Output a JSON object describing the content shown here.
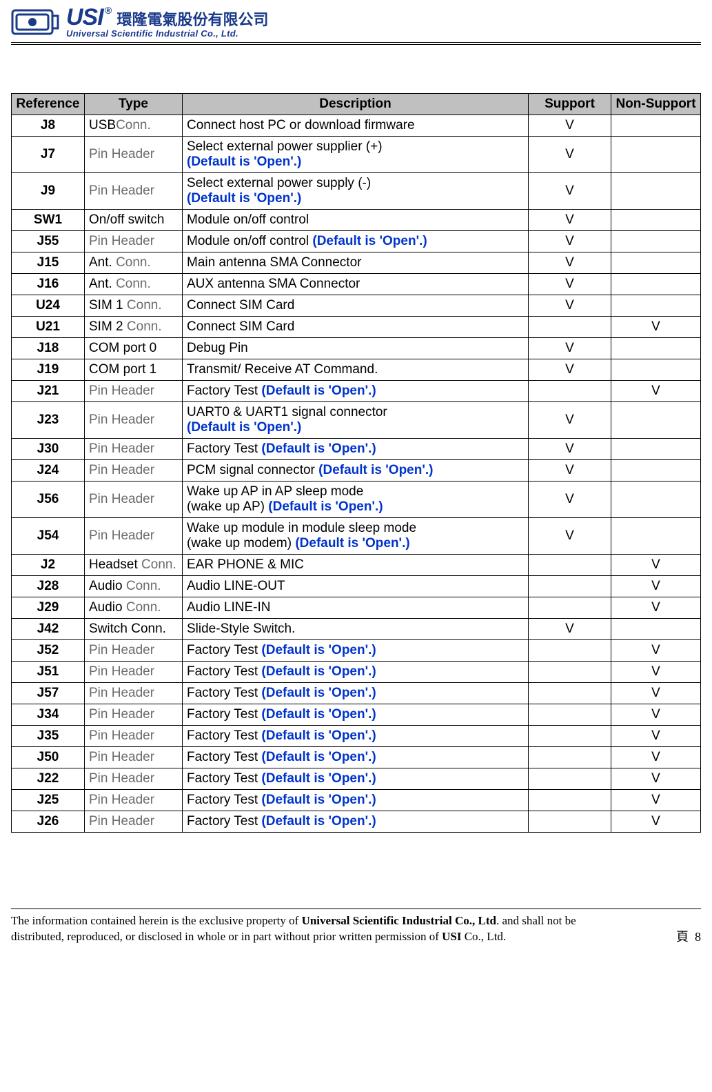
{
  "header": {
    "brand_abbr": "USI",
    "registered": "®",
    "brand_cn": "環隆電氣股份有限公司",
    "brand_sub": "Universal Scientific Industrial Co., Ltd."
  },
  "table": {
    "columns": [
      "Reference",
      "Type",
      "Description",
      "Support",
      "Non-Support"
    ],
    "default_note": "Default is 'Open'.",
    "rows": [
      {
        "ref": "J8",
        "type": "USB",
        "type_grey": "Conn.",
        "desc": "Connect host PC or download firmware",
        "has_default": false,
        "support": "V",
        "nonsupport": ""
      },
      {
        "ref": "J7",
        "type_grey_full": "Pin Header",
        "desc": "Select external power supplier (+)",
        "has_default": true,
        "default_inline": false,
        "support": "V",
        "nonsupport": ""
      },
      {
        "ref": "J9",
        "type_grey_full": "Pin Header",
        "desc": "Select external power supply (-)",
        "has_default": true,
        "default_inline": false,
        "support": "V",
        "nonsupport": ""
      },
      {
        "ref": "SW1",
        "type": "On/off switch",
        "desc": "Module on/off control",
        "has_default": false,
        "support": "V",
        "nonsupport": ""
      },
      {
        "ref": "J55",
        "type_grey_full": "Pin Header",
        "desc": "Module on/off control ",
        "has_default": true,
        "default_inline": true,
        "support": "V",
        "nonsupport": ""
      },
      {
        "ref": "J15",
        "type": "Ant. ",
        "type_grey": "Conn.",
        "desc": "Main antenna SMA Connector",
        "has_default": false,
        "support": "V",
        "nonsupport": ""
      },
      {
        "ref": "J16",
        "type": "Ant. ",
        "type_grey": "Conn.",
        "desc": "AUX antenna SMA Connector",
        "has_default": false,
        "support": "V",
        "nonsupport": ""
      },
      {
        "ref": "U24",
        "type": "SIM 1 ",
        "type_grey": "Conn.",
        "desc": "Connect SIM Card",
        "has_default": false,
        "support": "V",
        "nonsupport": ""
      },
      {
        "ref": "U21",
        "type": "SIM 2 ",
        "type_grey": "Conn.",
        "desc": "Connect SIM Card",
        "has_default": false,
        "support": "",
        "nonsupport": "V"
      },
      {
        "ref": "J18",
        "type": "COM port 0",
        "desc": "Debug Pin",
        "has_default": false,
        "support": "V",
        "nonsupport": ""
      },
      {
        "ref": "J19",
        "type": "COM port 1",
        "desc": "Transmit/ Receive AT Command.",
        "has_default": false,
        "support": "V",
        "nonsupport": ""
      },
      {
        "ref": "J21",
        "type_grey_full": "Pin Header",
        "desc": "Factory Test ",
        "has_default": true,
        "default_inline": true,
        "support": "",
        "nonsupport": "V"
      },
      {
        "ref": "J23",
        "type_grey_full": "Pin Header",
        "desc": "UART0 & UART1 signal connector",
        "has_default": true,
        "default_inline": false,
        "support": "V",
        "nonsupport": ""
      },
      {
        "ref": "J30",
        "type_grey_full": "Pin Header",
        "desc": "Factory Test ",
        "has_default": true,
        "default_inline": true,
        "support": "V",
        "nonsupport": ""
      },
      {
        "ref": "J24",
        "type_grey_full": "Pin Header",
        "desc": "PCM signal connector ",
        "has_default": true,
        "default_inline": true,
        "support": "V",
        "nonsupport": ""
      },
      {
        "ref": "J56",
        "type_grey_full": "Pin Header",
        "desc": "Wake up AP in AP sleep mode",
        "desc2": "(wake up AP) ",
        "has_default": true,
        "default_inline": true,
        "two_line": true,
        "support": "V",
        "nonsupport": ""
      },
      {
        "ref": "J54",
        "type_grey_full": "Pin Header",
        "desc": "Wake up module in module sleep mode",
        "desc2": "(wake up modem) ",
        "has_default": true,
        "default_inline": true,
        "two_line": true,
        "support": "V",
        "nonsupport": ""
      },
      {
        "ref": "J2",
        "type": "Headset ",
        "type_grey": "Conn.",
        "desc": "EAR PHONE & MIC",
        "has_default": false,
        "support": "",
        "nonsupport": "V"
      },
      {
        "ref": "J28",
        "type": "Audio ",
        "type_grey": "Conn.",
        "desc": "Audio LINE-OUT",
        "has_default": false,
        "support": "",
        "nonsupport": "V"
      },
      {
        "ref": "J29",
        "type": "Audio ",
        "type_grey": "Conn.",
        "desc": "Audio LINE-IN",
        "has_default": false,
        "support": "",
        "nonsupport": "V"
      },
      {
        "ref": "J42",
        "type": "Switch Conn.",
        "desc": "Slide-Style Switch.",
        "has_default": false,
        "support": "V",
        "nonsupport": ""
      },
      {
        "ref": "J52",
        "type_grey_full": "Pin Header",
        "desc": "Factory Test ",
        "has_default": true,
        "default_inline": true,
        "support": "",
        "nonsupport": "V"
      },
      {
        "ref": "J51",
        "type_grey_full": "Pin Header",
        "desc": "Factory Test ",
        "has_default": true,
        "default_inline": true,
        "support": "",
        "nonsupport": "V"
      },
      {
        "ref": "J57",
        "type_grey_full": "Pin Header",
        "desc": "Factory Test ",
        "has_default": true,
        "default_inline": true,
        "support": "",
        "nonsupport": "V"
      },
      {
        "ref": "J34",
        "type_grey_full": "Pin Header",
        "desc": "Factory Test ",
        "has_default": true,
        "default_inline": true,
        "support": "",
        "nonsupport": "V"
      },
      {
        "ref": "J35",
        "type_grey_full": "Pin Header",
        "desc": "Factory Test ",
        "has_default": true,
        "default_inline": true,
        "support": "",
        "nonsupport": "V"
      },
      {
        "ref": "J50",
        "type_grey_full": "Pin Header",
        "desc": "Factory Test ",
        "has_default": true,
        "default_inline": true,
        "support": "",
        "nonsupport": "V"
      },
      {
        "ref": "J22",
        "type_grey_full": "Pin Header",
        "desc": "Factory Test ",
        "has_default": true,
        "default_inline": true,
        "support": "",
        "nonsupport": "V"
      },
      {
        "ref": "J25",
        "type_grey_full": "Pin Header",
        "desc": "Factory Test ",
        "has_default": true,
        "default_inline": true,
        "support": "",
        "nonsupport": "V"
      },
      {
        "ref": "J26",
        "type_grey_full": "Pin Header",
        "desc": "Factory Test ",
        "has_default": true,
        "default_inline": true,
        "support": "",
        "nonsupport": "V"
      }
    ]
  },
  "footer": {
    "line1_a": "The information contained herein is the exclusive property of ",
    "line1_b": "Universal Scientific Industrial Co., Ltd",
    "line1_c": ". and shall not be distributed, reproduced, or disclosed in whole or in part without prior written permission of ",
    "line1_d": "USI",
    "line1_e": " Co., Ltd.",
    "page_prefix": "頁",
    "page_num": "8"
  }
}
